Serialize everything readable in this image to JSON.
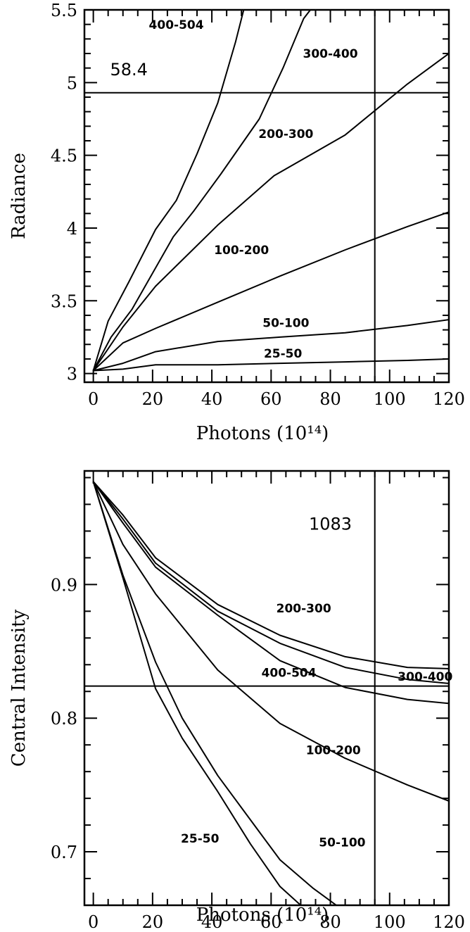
{
  "chart_data": [
    {
      "type": "line",
      "xlabel": "Photons (10¹⁴)",
      "ylabel": "Radiance",
      "xlim": [
        -3,
        120
      ],
      "ylim": [
        2.94,
        5.5
      ],
      "xticks": [
        0,
        20,
        40,
        60,
        80,
        100,
        120
      ],
      "xtick_labels": [
        "0",
        "20",
        "40",
        "60",
        "80",
        "100",
        "120"
      ],
      "xtick_minor_step": 5,
      "yticks": [
        3,
        3.5,
        4,
        4.5,
        5,
        5.5
      ],
      "ytick_labels": [
        "3",
        "3.5",
        "4",
        "4.5",
        "5",
        "5.5"
      ],
      "ytick_minor_step": 0.1,
      "annotations": [
        {
          "text": "58.4",
          "x": 12,
          "y": 5.05
        }
      ],
      "hline": 4.93,
      "vline": 95,
      "series": [
        {
          "name": "25-50",
          "label_at": [
            64,
            3.11
          ],
          "x": [
            0,
            10,
            21,
            42,
            63,
            85,
            106,
            120
          ],
          "y": [
            3.02,
            3.03,
            3.06,
            3.06,
            3.07,
            3.08,
            3.09,
            3.1
          ]
        },
        {
          "name": "50-100",
          "label_at": [
            65,
            3.32
          ],
          "x": [
            0,
            10,
            21,
            42,
            63,
            85,
            106,
            120
          ],
          "y": [
            3.02,
            3.07,
            3.15,
            3.22,
            3.25,
            3.28,
            3.33,
            3.37
          ]
        },
        {
          "name": "100-200",
          "label_at": [
            50,
            3.82
          ],
          "x": [
            0,
            10,
            21,
            42,
            63,
            85,
            106,
            120
          ],
          "y": [
            3.02,
            3.21,
            3.31,
            3.49,
            3.67,
            3.85,
            4.01,
            4.11
          ]
        },
        {
          "name": "200-300",
          "label_at": [
            65,
            4.62
          ],
          "x": [
            0,
            10,
            21,
            42,
            61,
            85,
            106,
            120
          ],
          "y": [
            3.02,
            3.32,
            3.6,
            4.02,
            4.36,
            4.64,
            4.99,
            5.2
          ]
        },
        {
          "name": "300-400",
          "label_at": [
            80,
            5.17
          ],
          "x": [
            0,
            6,
            13,
            27,
            34,
            43,
            56,
            64,
            71,
            74
          ],
          "y": [
            3.02,
            3.25,
            3.44,
            3.94,
            4.12,
            4.37,
            4.75,
            5.1,
            5.44,
            5.52
          ]
        },
        {
          "name": "400-504",
          "label_at": [
            28,
            5.37
          ],
          "x": [
            0,
            5,
            12,
            21,
            28,
            35,
            42,
            48,
            51
          ],
          "y": [
            3.02,
            3.36,
            3.63,
            3.99,
            4.19,
            4.51,
            4.86,
            5.28,
            5.52
          ]
        }
      ]
    },
    {
      "type": "line",
      "xlabel": "Photons (10¹⁴)",
      "ylabel": "Central Intensity",
      "xlim": [
        -3,
        120
      ],
      "ylim": [
        0.66,
        0.985
      ],
      "xticks": [
        0,
        20,
        40,
        60,
        80,
        100,
        120
      ],
      "xtick_labels": [
        "0",
        "20",
        "40",
        "60",
        "80",
        "100",
        "120"
      ],
      "xtick_minor_step": 5,
      "yticks": [
        0.7,
        0.8,
        0.9
      ],
      "ytick_labels": [
        "0.7",
        "0.8",
        "0.9"
      ],
      "ytick_minor_step": 0.02,
      "annotations": [
        {
          "text": "1083",
          "x": 80,
          "y": 0.941
        }
      ],
      "hline": 0.824,
      "vline": 95,
      "series": [
        {
          "name": "25-50",
          "label_at": [
            36,
            0.707
          ],
          "x": [
            0,
            10,
            21,
            30,
            42,
            53,
            63,
            70,
            76
          ],
          "y": [
            0.977,
            0.905,
            0.822,
            0.785,
            0.745,
            0.706,
            0.674,
            0.66,
            0.648
          ]
        },
        {
          "name": "50-100",
          "label_at": [
            84,
            0.704
          ],
          "x": [
            0,
            10,
            21,
            30,
            42,
            53,
            63,
            74,
            82,
            86
          ],
          "y": [
            0.977,
            0.907,
            0.842,
            0.8,
            0.757,
            0.724,
            0.694,
            0.673,
            0.66,
            0.654
          ]
        },
        {
          "name": "100-200",
          "label_at": [
            81,
            0.773
          ],
          "x": [
            0,
            10,
            21,
            42,
            63,
            85,
            106,
            120
          ],
          "y": [
            0.977,
            0.93,
            0.893,
            0.836,
            0.796,
            0.77,
            0.75,
            0.738
          ]
        },
        {
          "name": "400-504",
          "label_at": [
            66,
            0.831
          ],
          "x": [
            0,
            10,
            21,
            42,
            63,
            85,
            106,
            120
          ],
          "y": [
            0.977,
            0.946,
            0.913,
            0.877,
            0.843,
            0.823,
            0.814,
            0.811
          ]
        },
        {
          "name": "200-300",
          "label_at": [
            71,
            0.879
          ],
          "x": [
            0,
            10,
            21,
            42,
            63,
            85,
            106,
            120
          ],
          "y": [
            0.977,
            0.949,
            0.916,
            0.88,
            0.856,
            0.838,
            0.829,
            0.826
          ]
        },
        {
          "name": "300-400",
          "label_at": [
            112,
            0.828
          ],
          "x": [
            0,
            10,
            21,
            42,
            63,
            85,
            106,
            120
          ],
          "y": [
            0.977,
            0.952,
            0.92,
            0.885,
            0.862,
            0.846,
            0.838,
            0.837
          ]
        }
      ]
    }
  ]
}
